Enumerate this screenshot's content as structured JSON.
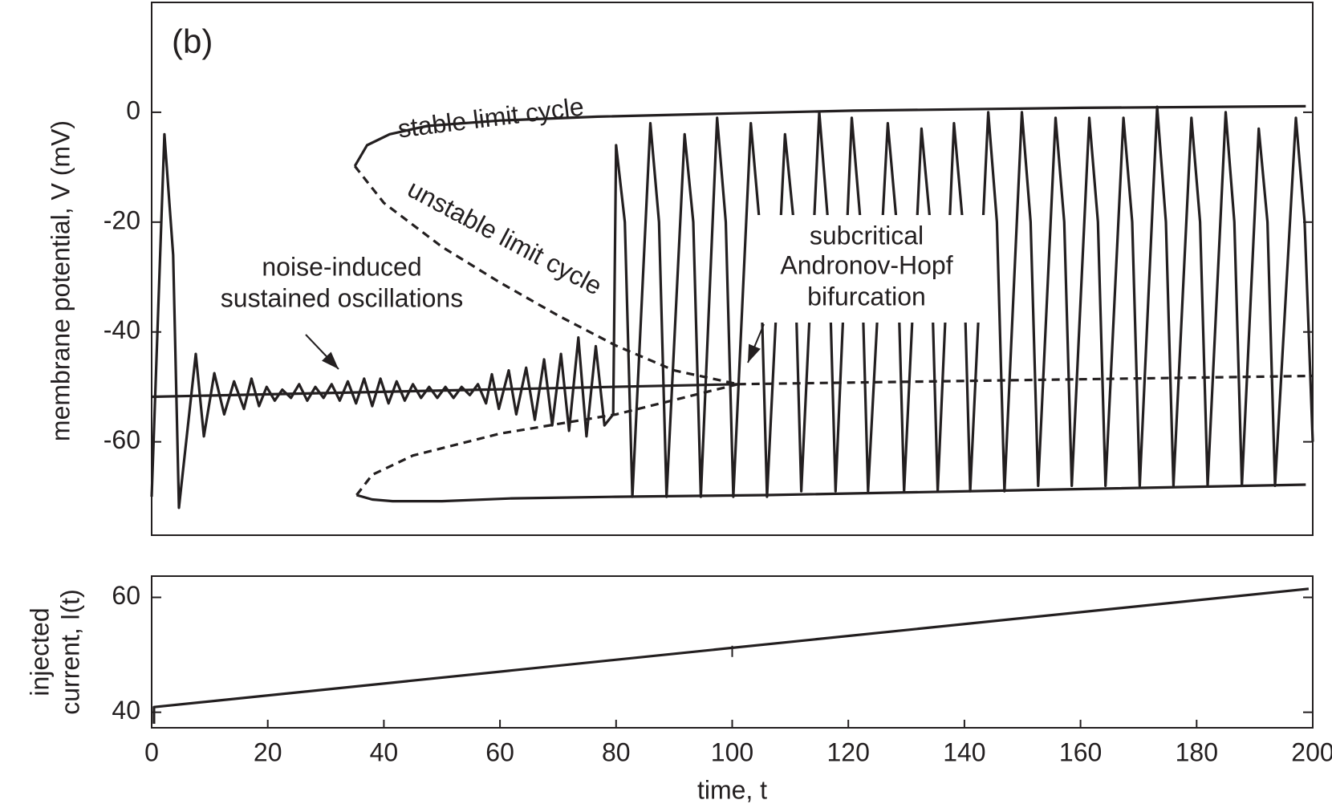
{
  "chart_data": [
    {
      "type": "line",
      "panel_label": "(b)",
      "ylabel": "membrane potential, V (mV)",
      "xlim": [
        0,
        200
      ],
      "ylim": [
        -77,
        20
      ],
      "yticks": [
        -60,
        -40,
        -20,
        0
      ],
      "annotations": [
        "stable limit cycle",
        "unstable limit cycle",
        "noise-induced",
        "sustained oscillations",
        "subcritical",
        "Andronov-Hopf",
        "bifurcation"
      ],
      "series": [
        {
          "color": "#231f20",
          "linestyle": "solid",
          "x": [
            0,
            1,
            2.2,
            3.7,
            4.7,
            7.6,
            9,
            10.8,
            12.5,
            14.2,
            15.9,
            17.2,
            18.5,
            19.8,
            21.2,
            22.5,
            24,
            25.4,
            26.8,
            28.2,
            29.6,
            31,
            32.4,
            33.8,
            35.2,
            36.6,
            38,
            39.4,
            40.8,
            42.2,
            43.6,
            45,
            46.4,
            47.8,
            49.2,
            50.6,
            52,
            53.4,
            54.8,
            56.2,
            57.6,
            58.6,
            59.8,
            61.5,
            62.8,
            64.5,
            66,
            67.6,
            69,
            70.5,
            71.9,
            73.5,
            74.9,
            76.5,
            78,
            79.5,
            80,
            81.5,
            82.8,
            85.9,
            87.4,
            88.7,
            91.8,
            93.3,
            94.6,
            97.4,
            98.9,
            100.2,
            103.2,
            104.7,
            106,
            109.1,
            110.6,
            111.9,
            115,
            116.5,
            117.8,
            120.6,
            122.1,
            123.4,
            126.8,
            128.3,
            129.6,
            132.6,
            134.1,
            135.4,
            138.2,
            139.7,
            141,
            144.1,
            145.6,
            146.9,
            149.9,
            151.4,
            152.7,
            155.7,
            157.2,
            158.5,
            161.5,
            163,
            164.3,
            167.4,
            168.9,
            170.2,
            173.2,
            174.7,
            176,
            179.1,
            180.6,
            181.9,
            185,
            186.5,
            187.8,
            190.7,
            192.2,
            193.5,
            197.1,
            198.6,
            200
          ],
          "values": [
            -70,
            -40,
            -4,
            -26,
            -72,
            -44,
            -59,
            -47.5,
            -55,
            -49,
            -54,
            -48.5,
            -53.5,
            -50,
            -52.5,
            -50.5,
            -52,
            -49.5,
            -52.5,
            -50,
            -52,
            -49.5,
            -52.5,
            -49,
            -53,
            -48.5,
            -53.5,
            -48.5,
            -53,
            -49,
            -52.5,
            -49.5,
            -52,
            -50,
            -52,
            -50,
            -52,
            -50,
            -51.5,
            -49.5,
            -53,
            -47.7,
            -54,
            -47,
            -55,
            -46.5,
            -56,
            -45,
            -57,
            -44,
            -58,
            -41,
            -59,
            -42.6,
            -57,
            -55,
            -6,
            -20,
            -70,
            -2,
            -20,
            -70,
            -4,
            -20,
            -70,
            -1,
            -20,
            -70,
            -2,
            -20,
            -70,
            -4,
            -20,
            -69,
            0,
            -20,
            -69,
            -1,
            -20,
            -69,
            -2,
            -20,
            -69,
            -3,
            -20,
            -69,
            -2,
            -20,
            -69,
            0,
            -20,
            -69,
            0,
            -20,
            -68,
            -1,
            -20,
            -68,
            -1,
            -20,
            -68,
            -1,
            -20,
            -68,
            1,
            -20,
            -68,
            -1,
            -20,
            -68,
            0,
            -20,
            -68,
            -3,
            -20,
            -68,
            -1,
            -20,
            -60
          ]
        },
        {
          "color": "#231f20",
          "linestyle": "solid",
          "x": [
            35,
            37.1,
            41,
            47.4,
            60,
            76.8,
            100,
            120.9,
            160,
            198.8
          ],
          "values": [
            -9.8,
            -6,
            -4,
            -2.5,
            -1.5,
            -0.8,
            -0.2,
            0.3,
            0.8,
            1.1
          ]
        },
        {
          "color": "#231f20",
          "linestyle": "solid",
          "x": [
            35.3,
            38,
            41.5,
            50,
            62,
            80,
            106,
            150,
            198.8
          ],
          "values": [
            -69.7,
            -70.5,
            -70.8,
            -70.8,
            -70.3,
            -70,
            -69.7,
            -68.8,
            -67.8
          ]
        },
        {
          "color": "#231f20",
          "linestyle": "dashed",
          "x": [
            35,
            40,
            50,
            60,
            70,
            80,
            90,
            101
          ],
          "values": [
            -9.8,
            -16.5,
            -24.5,
            -31,
            -37,
            -42.5,
            -47,
            -49.5
          ]
        },
        {
          "color": "#231f20",
          "linestyle": "dashed",
          "x": [
            35.3,
            38,
            45,
            60,
            80,
            101
          ],
          "values": [
            -69.7,
            -66,
            -62.5,
            -58.5,
            -55,
            -49.5
          ]
        },
        {
          "color": "#231f20",
          "linestyle": "solid",
          "x": [
            0,
            101
          ],
          "values": [
            -51.8,
            -49.5
          ]
        },
        {
          "color": "#231f20",
          "linestyle": "dashed",
          "x": [
            101,
            200
          ],
          "values": [
            -49.5,
            -48
          ]
        }
      ]
    },
    {
      "type": "line",
      "ylabel": [
        "injected",
        "current, I(t)"
      ],
      "xlabel": "time, t",
      "xlim": [
        0,
        200
      ],
      "ylim": [
        37.3,
        63.7
      ],
      "yticks": [
        40,
        60
      ],
      "xticks": [
        0,
        20,
        40,
        60,
        80,
        100,
        120,
        140,
        160,
        180,
        200
      ],
      "series": [
        {
          "color": "#231f20",
          "linestyle": "solid",
          "x": [
            0.4,
            0.4,
            199.3
          ],
          "values": [
            38,
            40.9,
            61.5
          ]
        }
      ]
    }
  ]
}
